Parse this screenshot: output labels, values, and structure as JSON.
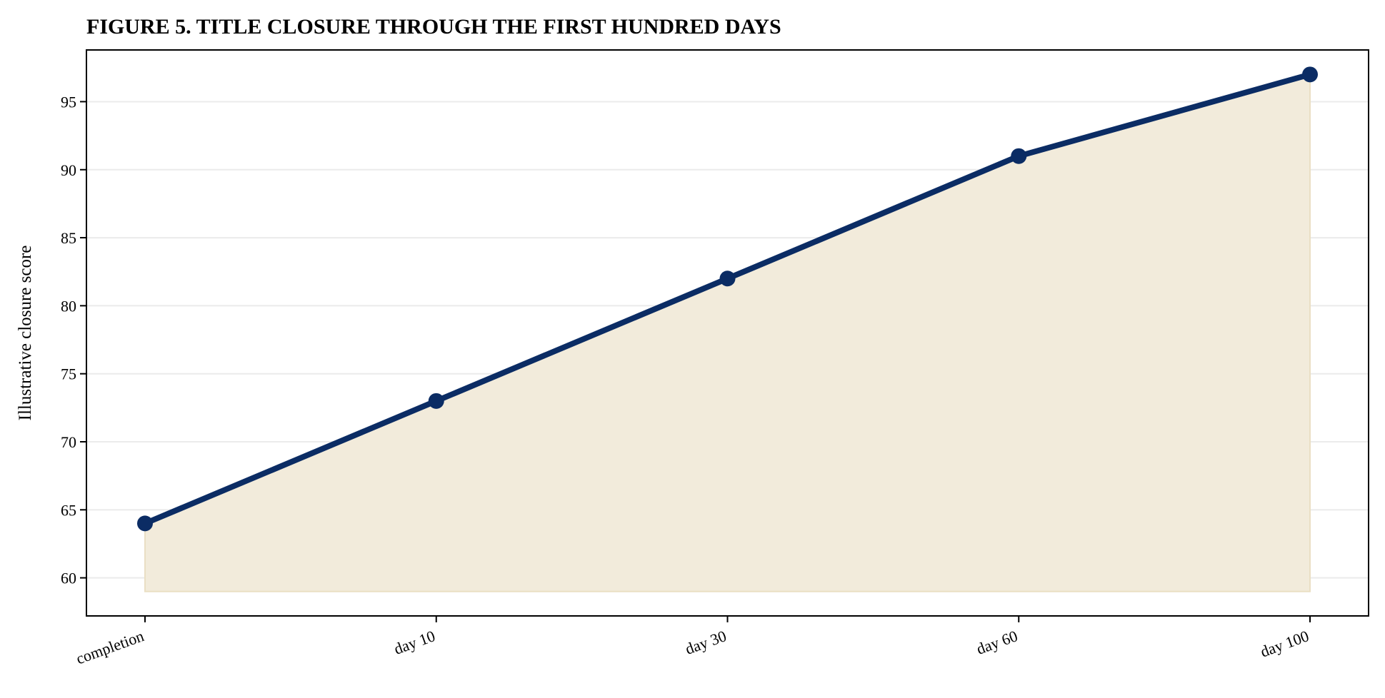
{
  "chart_data": {
    "type": "area",
    "title": "FIGURE 5. TITLE CLOSURE THROUGH THE FIRST HUNDRED DAYS",
    "xlabel": "",
    "ylabel": "Illustrative closure score",
    "categories": [
      "completion",
      "day 10",
      "day 30",
      "day 60",
      "day 100"
    ],
    "series": [
      {
        "values": [
          64,
          73,
          82,
          91,
          97
        ]
      }
    ],
    "fill_baseline": 59,
    "ylim": [
      57.2,
      98.8
    ],
    "yticks": [
      60,
      65,
      70,
      75,
      80,
      85,
      90,
      95
    ],
    "grid": "horizontal",
    "colors": {
      "line": "#0b2c64",
      "fill": "#f2ebdb",
      "grid": "#ebebeb"
    }
  }
}
